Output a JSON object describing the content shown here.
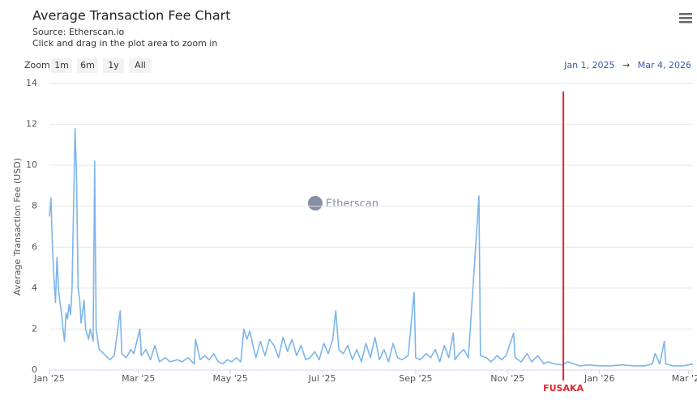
{
  "chart_data": {
    "type": "line",
    "title": "Average Transaction Fee Chart",
    "subtitle": "Source: Etherscan.io",
    "note": "Click and drag in the plot area to zoom in",
    "zoom_label": "Zoom",
    "zoom_buttons": [
      "1m",
      "6m",
      "1y",
      "All"
    ],
    "range": {
      "from": "Jan 1, 2025",
      "sep": "→",
      "to": "Mar 4, 2026"
    },
    "watermark": "Etherscan",
    "ylabel": "Average Transaction Fee (USD)",
    "color": "#7cb5ec",
    "grid": true,
    "xlim": [
      0,
      427
    ],
    "xticks": [
      {
        "value": 0,
        "label": "Jan '25"
      },
      {
        "value": 59,
        "label": "Mar '25"
      },
      {
        "value": 120,
        "label": "May '25"
      },
      {
        "value": 181,
        "label": "Jul '25"
      },
      {
        "value": 243,
        "label": "Sep '25"
      },
      {
        "value": 304,
        "label": "Nov '25"
      },
      {
        "value": 365,
        "label": "Jan '26"
      },
      {
        "value": 424,
        "label": "Mar '26"
      }
    ],
    "ylim": [
      0,
      14
    ],
    "yticks": [
      0,
      2,
      4,
      6,
      8,
      10,
      12,
      14
    ],
    "annotation": {
      "label": "FUSAKA",
      "x": 341,
      "color": "#e8232b"
    },
    "x": [
      0,
      1,
      2,
      3,
      4,
      5,
      6,
      7,
      8,
      9,
      10,
      11,
      12,
      13,
      14,
      15,
      17,
      18,
      19,
      20,
      21,
      23,
      24,
      26,
      27,
      29,
      30,
      31,
      33,
      36,
      40,
      43,
      47,
      48,
      51,
      54,
      56,
      60,
      61,
      64,
      67,
      70,
      73,
      77,
      80,
      85,
      88,
      92,
      96,
      97,
      100,
      103,
      106,
      109,
      112,
      115,
      118,
      121,
      124,
      127,
      129,
      131,
      133,
      135,
      137,
      140,
      143,
      146,
      149,
      152,
      155,
      158,
      161,
      164,
      167,
      170,
      173,
      176,
      179,
      182,
      185,
      188,
      190,
      192,
      195,
      198,
      201,
      204,
      207,
      210,
      213,
      216,
      219,
      222,
      225,
      228,
      231,
      234,
      238,
      242,
      243,
      246,
      250,
      253,
      256,
      259,
      262,
      265,
      268,
      269,
      272,
      275,
      278,
      285,
      286,
      290,
      293,
      297,
      300,
      303,
      308,
      309,
      313,
      317,
      320,
      324,
      328,
      331,
      335,
      340,
      344,
      348,
      352,
      358,
      365,
      372,
      380,
      388,
      395,
      400,
      402,
      405,
      408,
      409,
      414,
      420,
      424,
      427
    ],
    "values": [
      7.5,
      8.4,
      6,
      4.5,
      3.3,
      5.5,
      4,
      3.3,
      2.8,
      2.0,
      1.4,
      2.8,
      2.5,
      3.2,
      2.7,
      4.0,
      11.8,
      9.5,
      4.0,
      3.5,
      2.3,
      3.4,
      2.0,
      1.5,
      2.0,
      1.4,
      10.2,
      2.0,
      1.0,
      0.8,
      0.5,
      0.7,
      2.9,
      0.8,
      0.6,
      1.0,
      0.8,
      2.0,
      0.7,
      1.0,
      0.5,
      1.2,
      0.4,
      0.6,
      0.4,
      0.5,
      0.4,
      0.6,
      0.3,
      1.5,
      0.5,
      0.7,
      0.5,
      0.8,
      0.4,
      0.3,
      0.5,
      0.4,
      0.6,
      0.4,
      2.0,
      1.5,
      1.9,
      1.2,
      0.6,
      1.4,
      0.7,
      1.5,
      1.2,
      0.6,
      1.6,
      0.9,
      1.5,
      0.7,
      1.2,
      0.5,
      0.6,
      0.9,
      0.5,
      1.3,
      0.8,
      1.5,
      2.9,
      1.0,
      0.8,
      1.2,
      0.5,
      1.0,
      0.4,
      1.3,
      0.6,
      1.6,
      0.5,
      1.0,
      0.4,
      1.3,
      0.6,
      0.5,
      0.7,
      3.8,
      0.6,
      0.5,
      0.8,
      0.6,
      1.0,
      0.4,
      1.2,
      0.6,
      1.8,
      0.5,
      0.8,
      1.0,
      0.6,
      8.5,
      0.7,
      0.6,
      0.4,
      0.7,
      0.5,
      0.7,
      1.8,
      0.6,
      0.4,
      0.8,
      0.4,
      0.7,
      0.3,
      0.4,
      0.3,
      0.25,
      0.4,
      0.3,
      0.2,
      0.25,
      0.2,
      0.2,
      0.25,
      0.2,
      0.2,
      0.3,
      0.8,
      0.3,
      1.4,
      0.3,
      0.2,
      0.2,
      0.25,
      0.3
    ]
  }
}
